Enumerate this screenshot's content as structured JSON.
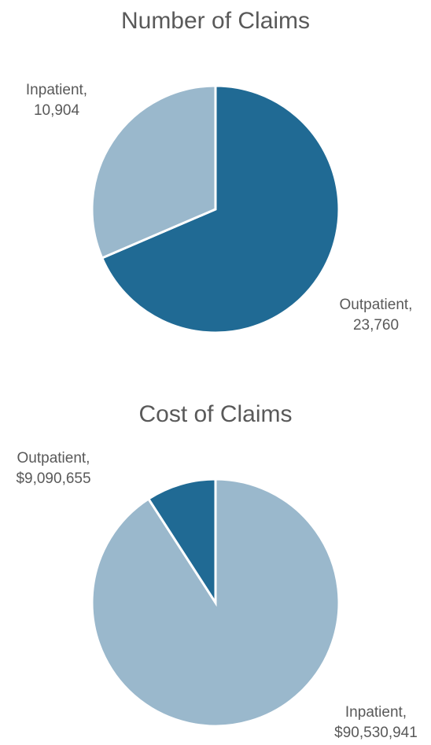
{
  "chart_data": [
    {
      "type": "pie",
      "title": "Number of Claims",
      "categories": [
        "Outpatient,",
        "Inpatient,"
      ],
      "values": [
        23760,
        10904
      ],
      "value_labels": [
        "23,760",
        "10,904"
      ],
      "colors": [
        "#206a94",
        "#9ab8cc"
      ]
    },
    {
      "type": "pie",
      "title": "Cost of Claims",
      "categories": [
        "Inpatient,",
        "Outpatient,"
      ],
      "values": [
        90530941,
        9090655
      ],
      "value_labels": [
        "$90,530,941",
        "$9,090,655"
      ],
      "colors": [
        "#9ab8cc",
        "#206a94"
      ]
    }
  ]
}
